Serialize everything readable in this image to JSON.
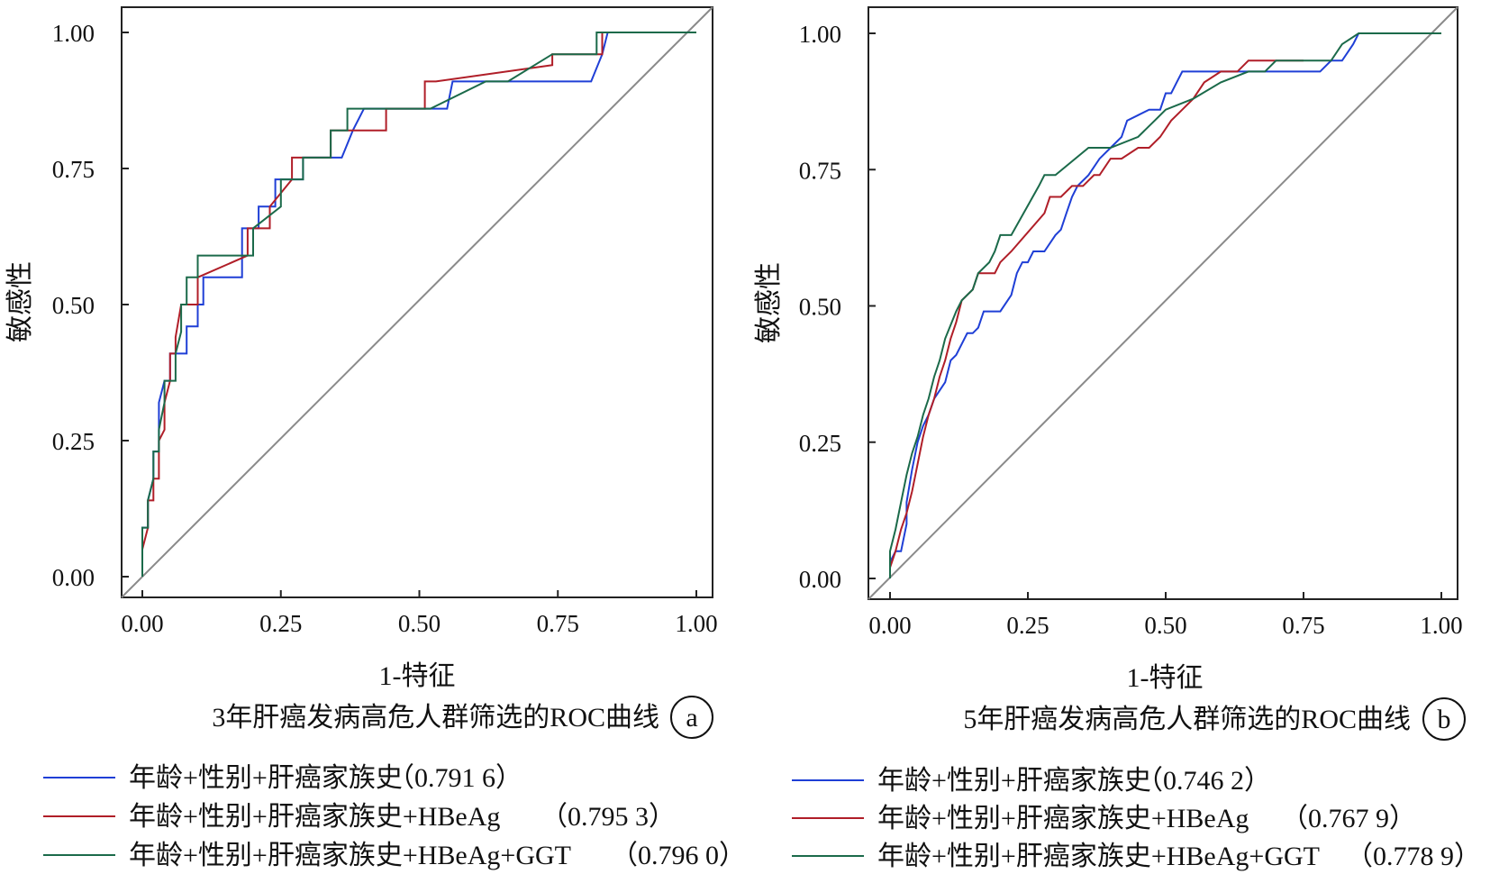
{
  "chart_data": [
    {
      "type": "line",
      "panel_letter": "a",
      "caption": "3年肝癌发病高危人群筛选的ROC曲线",
      "xlabel": "1-特征",
      "ylabel": "敏感性",
      "xlim": [
        0,
        1
      ],
      "ylim": [
        0,
        1
      ],
      "x_ticks": [
        "0.00",
        "0.25",
        "0.50",
        "0.75",
        "1.00"
      ],
      "y_ticks": [
        "0.00",
        "0.25",
        "0.50",
        "0.75",
        "1.00"
      ],
      "grid": false,
      "legend_position": "bottom",
      "series": [
        {
          "name": "年龄+性别+肝癌家族史",
          "auc_label": "（0.791 6）",
          "color": "#1f3fd6",
          "x": [
            0,
            0,
            0.01,
            0.01,
            0.02,
            0.02,
            0.03,
            0.03,
            0.04,
            0.04,
            0.05,
            0.05,
            0.06,
            0.06,
            0.07,
            0.08,
            0.08,
            0.1,
            0.1,
            0.11,
            0.11,
            0.18,
            0.18,
            0.21,
            0.21,
            0.24,
            0.24,
            0.29,
            0.29,
            0.36,
            0.36,
            0.38,
            0.4,
            0.42,
            0.55,
            0.56,
            0.8,
            0.81,
            0.83,
            0.84,
            1
          ],
          "y": [
            0,
            0.09,
            0.09,
            0.14,
            0.18,
            0.23,
            0.23,
            0.32,
            0.36,
            0.36,
            0.36,
            0.41,
            0.41,
            0.41,
            0.41,
            0.41,
            0.46,
            0.46,
            0.5,
            0.5,
            0.55,
            0.55,
            0.64,
            0.64,
            0.68,
            0.68,
            0.73,
            0.73,
            0.77,
            0.77,
            0.77,
            0.82,
            0.86,
            0.86,
            0.86,
            0.91,
            0.91,
            0.91,
            0.96,
            1,
            1
          ]
        },
        {
          "name": "年龄+性别+肝癌家族史+HBeAg",
          "auc_label": "（0.795 3）",
          "color": "#b01e28",
          "x": [
            0,
            0,
            0.01,
            0.01,
            0.02,
            0.02,
            0.03,
            0.03,
            0.04,
            0.04,
            0.05,
            0.05,
            0.06,
            0.06,
            0.07,
            0.1,
            0.1,
            0.19,
            0.19,
            0.23,
            0.23,
            0.27,
            0.27,
            0.34,
            0.34,
            0.44,
            0.44,
            0.51,
            0.51,
            0.53,
            0.53,
            0.74,
            0.74,
            0.83,
            0.83,
            1
          ],
          "y": [
            0,
            0.05,
            0.09,
            0.14,
            0.14,
            0.18,
            0.18,
            0.25,
            0.27,
            0.32,
            0.36,
            0.41,
            0.41,
            0.44,
            0.5,
            0.5,
            0.55,
            0.59,
            0.64,
            0.64,
            0.68,
            0.73,
            0.77,
            0.77,
            0.82,
            0.82,
            0.86,
            0.86,
            0.91,
            0.91,
            0.91,
            0.94,
            0.96,
            0.96,
            1,
            1
          ]
        },
        {
          "name": "年龄+性别+肝癌家族史+HBeAg+GGT",
          "auc_label": "（0.796 0）",
          "color": "#1b6a4a",
          "x": [
            0,
            0,
            0.01,
            0.01,
            0.02,
            0.02,
            0.03,
            0.03,
            0.04,
            0.04,
            0.06,
            0.06,
            0.07,
            0.07,
            0.08,
            0.08,
            0.1,
            0.1,
            0.2,
            0.2,
            0.25,
            0.25,
            0.29,
            0.29,
            0.34,
            0.34,
            0.37,
            0.37,
            0.5,
            0.52,
            0.62,
            0.62,
            0.66,
            0.74,
            0.82,
            0.82,
            1
          ],
          "y": [
            0,
            0.09,
            0.09,
            0.14,
            0.18,
            0.23,
            0.23,
            0.27,
            0.32,
            0.36,
            0.36,
            0.41,
            0.45,
            0.5,
            0.5,
            0.55,
            0.55,
            0.59,
            0.59,
            0.64,
            0.68,
            0.73,
            0.73,
            0.77,
            0.77,
            0.82,
            0.82,
            0.86,
            0.86,
            0.86,
            0.91,
            0.91,
            0.91,
            0.96,
            0.96,
            1,
            1
          ]
        }
      ]
    },
    {
      "type": "line",
      "panel_letter": "b",
      "caption": "5年肝癌发病高危人群筛选的ROC曲线",
      "xlabel": "1-特征",
      "ylabel": "敏感性",
      "xlim": [
        0,
        1
      ],
      "ylim": [
        0,
        1
      ],
      "x_ticks": [
        "0.00",
        "0.25",
        "0.50",
        "0.75",
        "1.00"
      ],
      "y_ticks": [
        "0.00",
        "0.25",
        "0.50",
        "0.75",
        "1.00"
      ],
      "grid": false,
      "legend_position": "bottom",
      "series": [
        {
          "name": "年龄+性别+肝癌家族史",
          "auc_label": "（0.746 2）",
          "color": "#1f3fd6",
          "x": [
            0,
            0,
            0.01,
            0.02,
            0.03,
            0.03,
            0.04,
            0.05,
            0.06,
            0.07,
            0.08,
            0.1,
            0.11,
            0.12,
            0.14,
            0.15,
            0.16,
            0.17,
            0.18,
            0.2,
            0.22,
            0.23,
            0.24,
            0.25,
            0.26,
            0.28,
            0.3,
            0.31,
            0.32,
            0.33,
            0.34,
            0.36,
            0.38,
            0.4,
            0.42,
            0.43,
            0.45,
            0.47,
            0.49,
            0.5,
            0.51,
            0.52,
            0.53,
            0.54,
            0.56,
            0.6,
            0.7,
            0.78,
            0.8,
            0.82,
            0.84,
            0.85,
            1
          ],
          "y": [
            0,
            0.03,
            0.05,
            0.05,
            0.1,
            0.14,
            0.2,
            0.25,
            0.28,
            0.3,
            0.33,
            0.36,
            0.4,
            0.41,
            0.45,
            0.45,
            0.46,
            0.49,
            0.49,
            0.49,
            0.52,
            0.56,
            0.58,
            0.58,
            0.6,
            0.6,
            0.63,
            0.64,
            0.67,
            0.7,
            0.72,
            0.74,
            0.77,
            0.79,
            0.81,
            0.84,
            0.85,
            0.86,
            0.86,
            0.89,
            0.89,
            0.91,
            0.93,
            0.93,
            0.93,
            0.93,
            0.93,
            0.93,
            0.95,
            0.95,
            0.98,
            1,
            1
          ]
        },
        {
          "name": "年龄+性别+肝癌家族史+HBeAg",
          "auc_label": "（0.767 9）",
          "color": "#b01e28",
          "x": [
            0,
            0,
            0.01,
            0.02,
            0.03,
            0.04,
            0.05,
            0.06,
            0.07,
            0.08,
            0.09,
            0.1,
            0.11,
            0.12,
            0.13,
            0.15,
            0.16,
            0.17,
            0.19,
            0.2,
            0.22,
            0.28,
            0.29,
            0.31,
            0.33,
            0.35,
            0.37,
            0.38,
            0.4,
            0.42,
            0.45,
            0.47,
            0.49,
            0.51,
            0.53,
            0.55,
            0.57,
            0.6,
            0.63,
            0.65,
            0.7,
            0.75
          ],
          "y": [
            0,
            0.02,
            0.05,
            0.09,
            0.12,
            0.16,
            0.21,
            0.26,
            0.3,
            0.33,
            0.37,
            0.4,
            0.44,
            0.47,
            0.51,
            0.53,
            0.56,
            0.56,
            0.56,
            0.58,
            0.6,
            0.67,
            0.7,
            0.7,
            0.72,
            0.72,
            0.74,
            0.74,
            0.77,
            0.77,
            0.79,
            0.79,
            0.81,
            0.84,
            0.86,
            0.88,
            0.91,
            0.93,
            0.93,
            0.95,
            0.95,
            0.95
          ]
        },
        {
          "name": "年龄+性别+肝癌家族史+HBeAg+GGT",
          "auc_label": "（0.778 9）",
          "color": "#1b6a4a",
          "x": [
            0,
            0,
            0.01,
            0.02,
            0.03,
            0.04,
            0.05,
            0.06,
            0.07,
            0.08,
            0.09,
            0.1,
            0.12,
            0.13,
            0.15,
            0.16,
            0.18,
            0.19,
            0.2,
            0.22,
            0.27,
            0.28,
            0.3,
            0.36,
            0.4,
            0.45,
            0.48,
            0.5,
            0.55,
            0.6,
            0.65,
            0.68,
            0.7,
            0.8,
            0.82,
            0.85,
            1
          ],
          "y": [
            0,
            0.05,
            0.09,
            0.14,
            0.19,
            0.23,
            0.26,
            0.3,
            0.33,
            0.37,
            0.4,
            0.44,
            0.49,
            0.51,
            0.53,
            0.56,
            0.58,
            0.6,
            0.63,
            0.63,
            0.72,
            0.74,
            0.74,
            0.79,
            0.79,
            0.81,
            0.84,
            0.86,
            0.88,
            0.91,
            0.93,
            0.93,
            0.95,
            0.95,
            0.98,
            1,
            1
          ]
        }
      ]
    }
  ]
}
